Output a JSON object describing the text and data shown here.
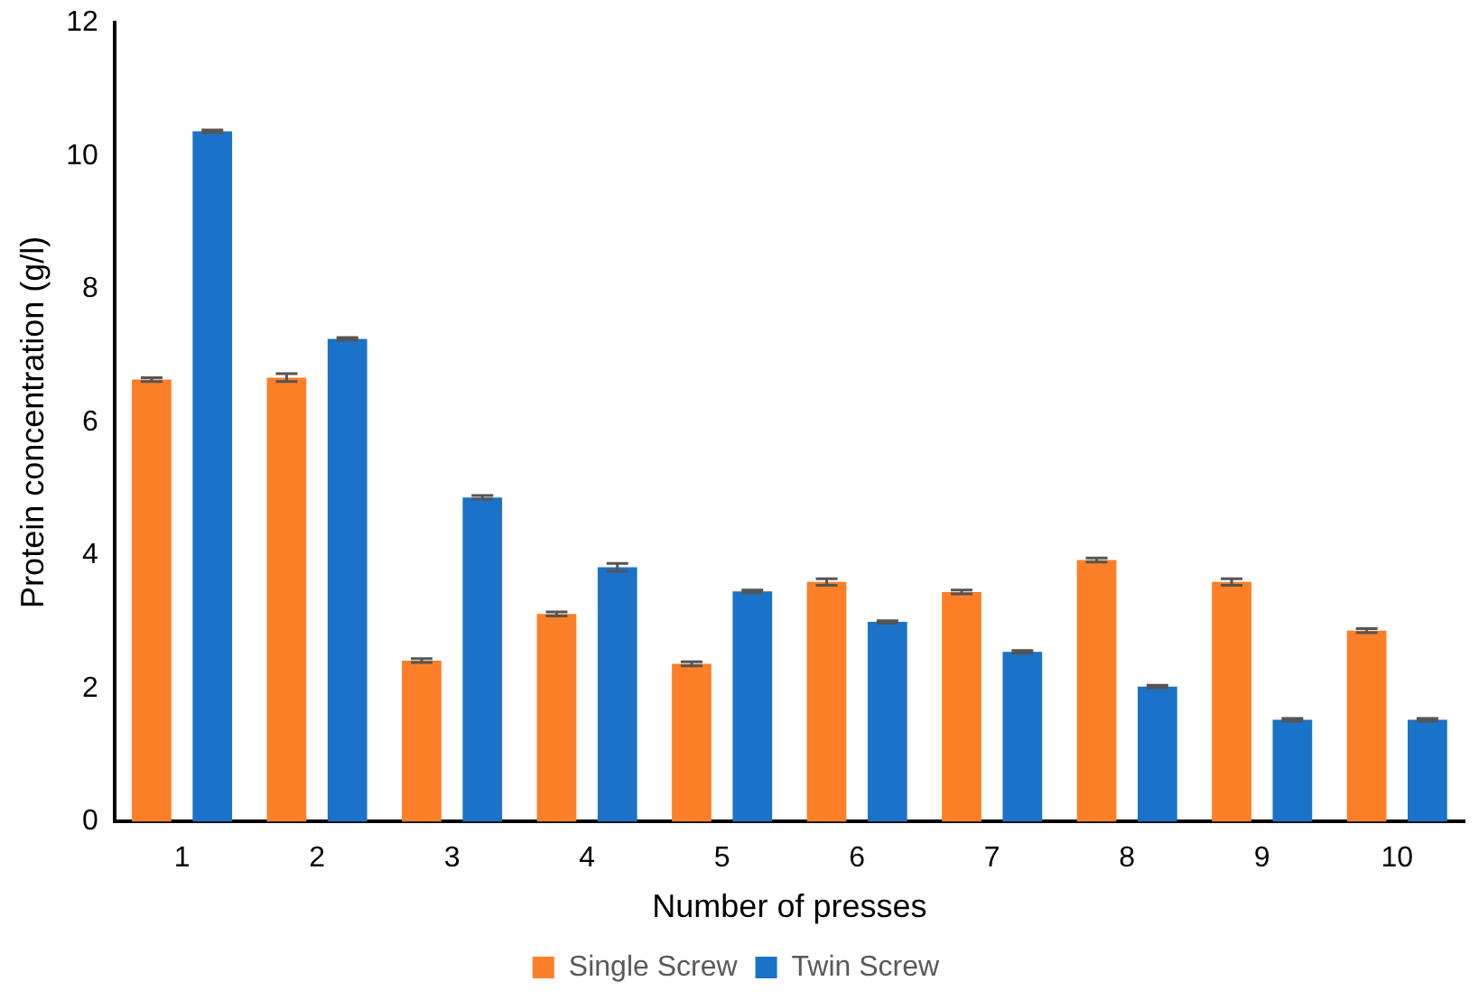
{
  "chart_data": {
    "type": "bar",
    "xlabel": "Number of presses",
    "ylabel": "Protein concentration (g/l)",
    "categories": [
      "1",
      "2",
      "3",
      "4",
      "5",
      "6",
      "7",
      "8",
      "9",
      "10"
    ],
    "series": [
      {
        "name": "Single Screw",
        "color": "#fd7f27",
        "values": [
          6.64,
          6.67,
          2.42,
          3.12,
          2.37,
          3.6,
          3.45,
          3.93,
          3.6,
          2.87
        ],
        "errors": [
          0.03,
          0.06,
          0.03,
          0.03,
          0.03,
          0.05,
          0.03,
          0.03,
          0.05,
          0.03
        ]
      },
      {
        "name": "Twin Screw",
        "color": "#1a73c8",
        "values": [
          10.37,
          7.25,
          4.87,
          3.82,
          3.46,
          3.0,
          2.55,
          2.03,
          1.53,
          1.53
        ],
        "errors": [
          0.02,
          0.02,
          0.03,
          0.06,
          0.02,
          0.02,
          0.02,
          0.02,
          0.02,
          0.02
        ]
      }
    ],
    "ylim": [
      0,
      12
    ],
    "yticks": [
      0,
      2,
      4,
      6,
      8,
      10,
      12
    ],
    "grid": false,
    "legend": "bottom"
  }
}
